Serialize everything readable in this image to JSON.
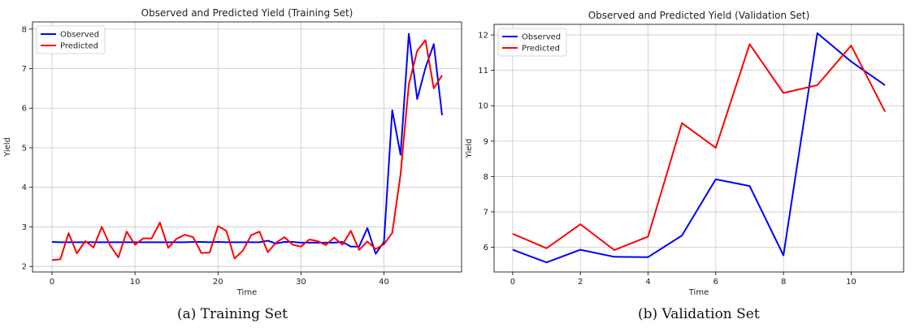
{
  "colors": {
    "observed": "#0000ff",
    "predicted": "#ff0000",
    "grid": "#c8c8c8",
    "axis": "#000000"
  },
  "chart_data": [
    {
      "type": "line",
      "title": "Observed and Predicted Yield (Training Set)",
      "xlabel": "Time",
      "ylabel": "Yield",
      "caption": "(a)  Training Set",
      "xlim": [
        -2.35,
        49.35
      ],
      "ylim": [
        1.86,
        8.18
      ],
      "xticks": [
        0,
        10,
        20,
        30,
        40
      ],
      "yticks": [
        2,
        3,
        4,
        5,
        6,
        7,
        8
      ],
      "grid": true,
      "legend_position": "top-left",
      "x": [
        0,
        1,
        2,
        3,
        4,
        5,
        6,
        7,
        8,
        9,
        10,
        11,
        12,
        13,
        14,
        15,
        16,
        17,
        18,
        19,
        20,
        21,
        22,
        23,
        24,
        25,
        26,
        27,
        28,
        29,
        30,
        31,
        32,
        33,
        34,
        35,
        36,
        37,
        38,
        39,
        40,
        41,
        42,
        43,
        44,
        45,
        46,
        47
      ],
      "series": [
        {
          "name": "Observed",
          "color": "#0000ff",
          "values": [
            2.62,
            2.61,
            2.61,
            2.61,
            2.61,
            2.61,
            2.61,
            2.61,
            2.61,
            2.61,
            2.61,
            2.61,
            2.61,
            2.61,
            2.61,
            2.61,
            2.61,
            2.62,
            2.62,
            2.61,
            2.62,
            2.61,
            2.61,
            2.61,
            2.61,
            2.61,
            2.65,
            2.58,
            2.62,
            2.62,
            2.6,
            2.6,
            2.6,
            2.6,
            2.6,
            2.62,
            2.5,
            2.5,
            2.97,
            2.32,
            2.62,
            5.95,
            4.82,
            7.88,
            6.23,
            7.02,
            7.62,
            5.82
          ]
        },
        {
          "name": "Predicted",
          "color": "#ff0000",
          "values": [
            2.16,
            2.18,
            2.84,
            2.33,
            2.64,
            2.48,
            3.0,
            2.53,
            2.23,
            2.88,
            2.55,
            2.71,
            2.71,
            3.11,
            2.47,
            2.7,
            2.8,
            2.74,
            2.34,
            2.35,
            3.02,
            2.9,
            2.2,
            2.4,
            2.79,
            2.88,
            2.36,
            2.6,
            2.74,
            2.55,
            2.5,
            2.68,
            2.64,
            2.54,
            2.73,
            2.55,
            2.9,
            2.42,
            2.63,
            2.44,
            2.56,
            2.85,
            4.32,
            6.6,
            7.45,
            7.72,
            6.5,
            6.83
          ]
        }
      ]
    },
    {
      "type": "line",
      "title": "Observed and Predicted Yield (Validation Set)",
      "xlabel": "Time",
      "ylabel": "Yield",
      "caption": "(b)  Validation Set",
      "xlim": [
        -0.55,
        11.55
      ],
      "ylim": [
        5.3,
        12.3
      ],
      "xticks": [
        0,
        2,
        4,
        6,
        8,
        10
      ],
      "yticks": [
        6,
        7,
        8,
        9,
        10,
        11,
        12
      ],
      "grid": true,
      "legend_position": "top-left",
      "x": [
        0,
        1,
        2,
        3,
        4,
        5,
        6,
        7,
        8,
        9,
        10,
        11
      ],
      "series": [
        {
          "name": "Observed",
          "color": "#0000ff",
          "values": [
            5.93,
            5.57,
            5.93,
            5.73,
            5.72,
            6.33,
            7.92,
            7.73,
            5.77,
            12.05,
            11.25,
            10.58
          ]
        },
        {
          "name": "Predicted",
          "color": "#ff0000",
          "values": [
            6.38,
            5.97,
            6.65,
            5.92,
            6.3,
            9.51,
            8.81,
            11.74,
            10.36,
            10.58,
            11.7,
            9.83
          ]
        }
      ]
    }
  ]
}
